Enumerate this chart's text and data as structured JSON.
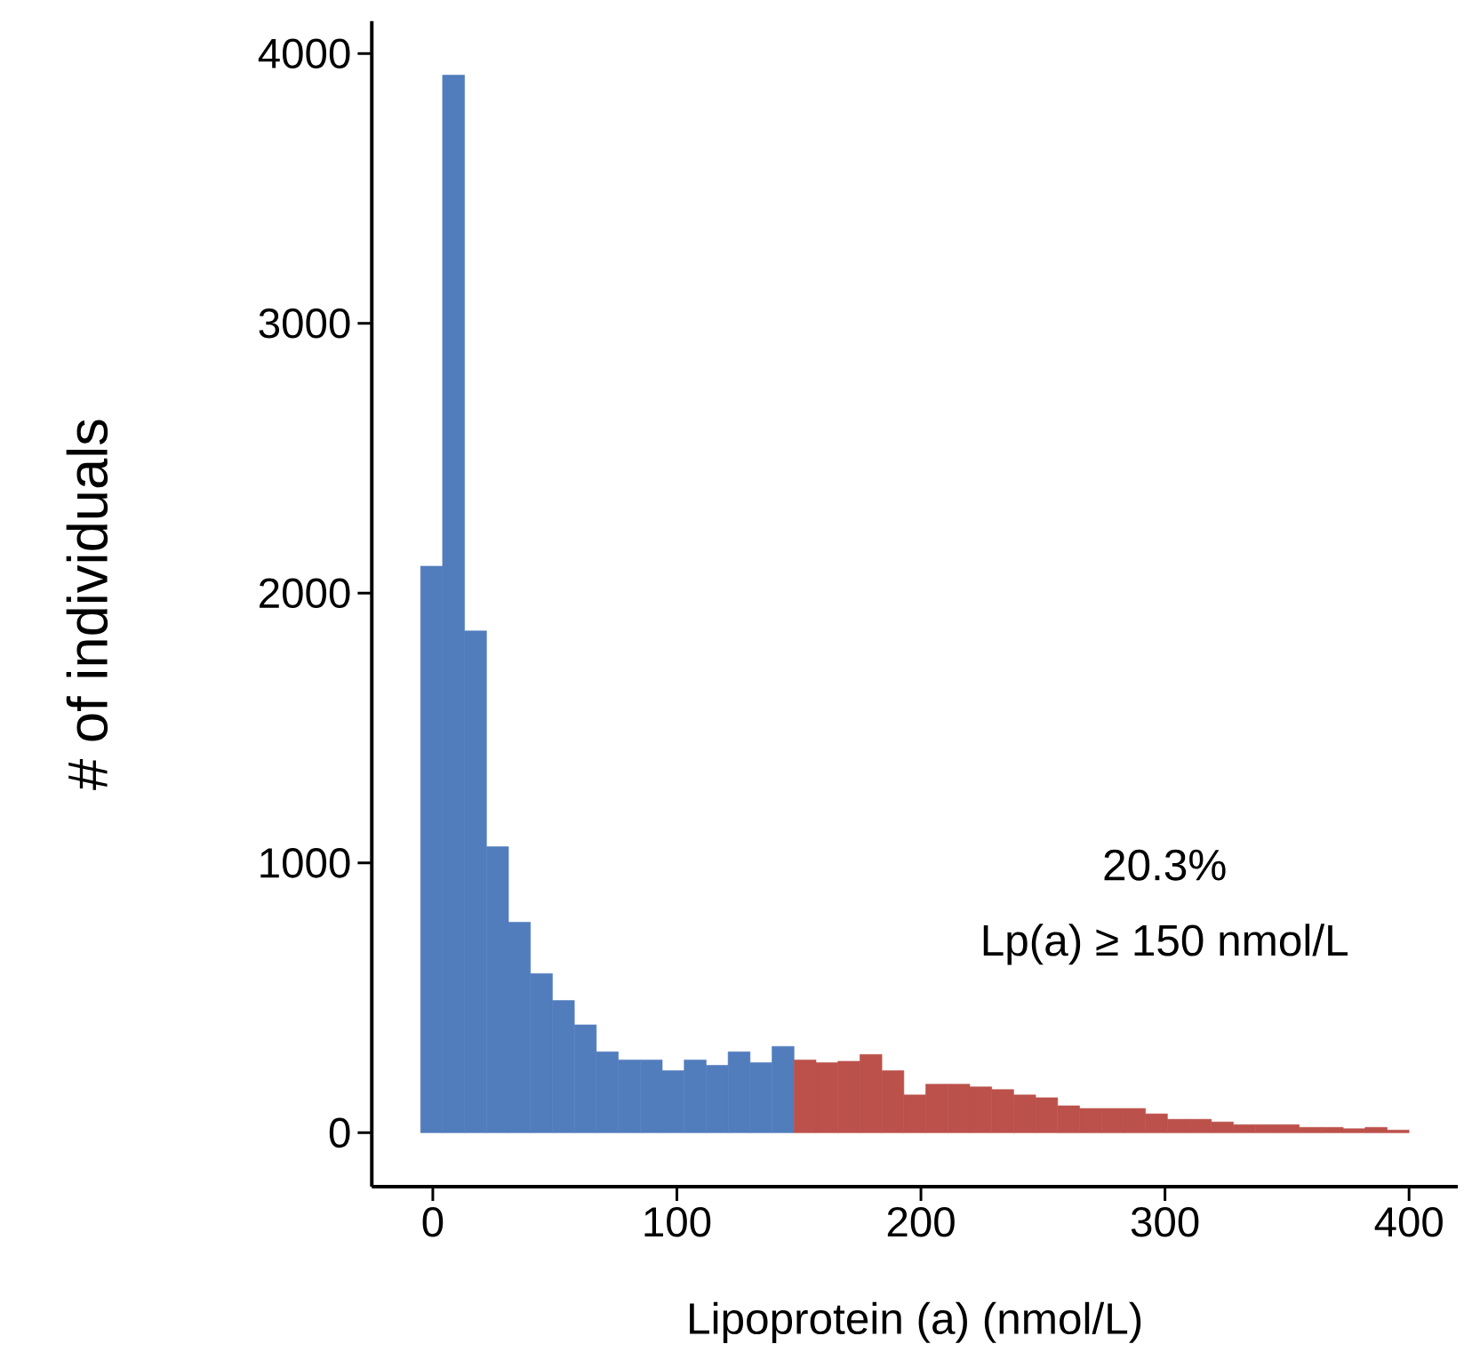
{
  "chart_data": {
    "type": "histogram",
    "xlabel": "Lipoprotein (a) (nmol/L)",
    "ylabel": "# of individuals",
    "bins": [
      -5,
      4,
      13,
      22,
      31,
      40,
      49,
      58,
      67,
      76,
      85,
      94,
      103,
      112,
      121,
      130,
      139,
      148,
      157,
      166,
      175,
      184,
      193,
      202,
      211,
      220,
      229,
      238,
      247,
      256,
      265,
      274,
      283,
      292,
      301,
      310,
      319,
      328,
      337,
      346,
      355,
      364,
      373,
      382,
      391,
      400
    ],
    "values": [
      2100,
      3920,
      1860,
      1060,
      780,
      590,
      490,
      400,
      300,
      270,
      270,
      230,
      270,
      250,
      300,
      260,
      320,
      270,
      260,
      265,
      290,
      230,
      140,
      180,
      180,
      170,
      160,
      140,
      130,
      100,
      90,
      90,
      90,
      70,
      50,
      50,
      40,
      30,
      30,
      30,
      20,
      20,
      15,
      20,
      10
    ],
    "colors": [
      "#527dbd",
      "#527dbd",
      "#527dbd",
      "#527dbd",
      "#527dbd",
      "#527dbd",
      "#527dbd",
      "#527dbd",
      "#527dbd",
      "#527dbd",
      "#527dbd",
      "#527dbd",
      "#527dbd",
      "#527dbd",
      "#527dbd",
      "#527dbd",
      "#527dbd",
      "#bb514a",
      "#bb514a",
      "#bb514a",
      "#bb514a",
      "#bb514a",
      "#bb514a",
      "#bb514a",
      "#bb514a",
      "#bb514a",
      "#bb514a",
      "#bb514a",
      "#bb514a",
      "#bb514a",
      "#bb514a",
      "#bb514a",
      "#bb514a",
      "#bb514a",
      "#bb514a",
      "#bb514a",
      "#bb514a",
      "#bb514a",
      "#bb514a",
      "#bb514a",
      "#bb514a",
      "#bb514a",
      "#bb514a",
      "#bb514a",
      "#bb514a"
    ],
    "annotations": [
      "20.3%",
      "Lp(a) ≥ 150 nmol/L"
    ],
    "xlim": [
      -25,
      420
    ],
    "ylim": [
      -200,
      4120
    ],
    "xticks": [
      0,
      100,
      200,
      300,
      400
    ],
    "yticks": [
      0,
      1000,
      2000,
      3000,
      4000
    ],
    "grid": false
  }
}
